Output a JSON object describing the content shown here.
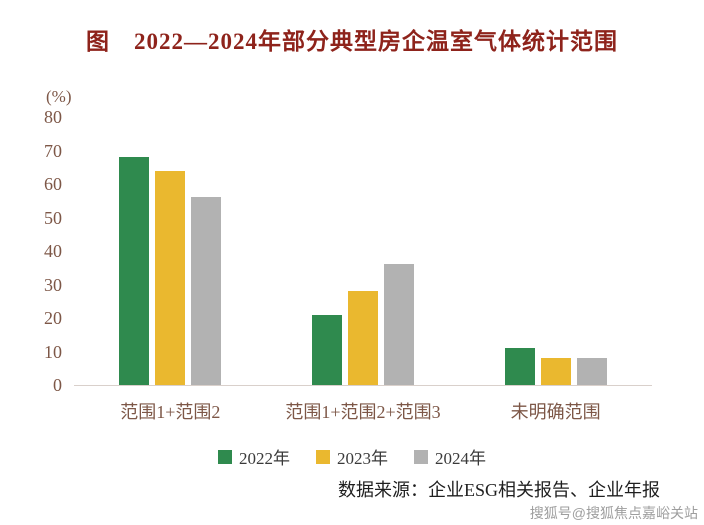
{
  "title": "图　2022—2024年部分典型房企温室气体统计范围",
  "chart_data": {
    "type": "bar",
    "unit_label": "(%)",
    "categories": [
      "范围1+范围2",
      "范围1+范围2+范围3",
      "未明确范围"
    ],
    "series": [
      {
        "name": "2022年",
        "color": "#2f8a4e",
        "values": [
          68,
          21,
          11
        ]
      },
      {
        "name": "2023年",
        "color": "#eab82f",
        "values": [
          64,
          28,
          8
        ]
      },
      {
        "name": "2024年",
        "color": "#b2b2b2",
        "values": [
          56,
          36,
          8
        ]
      }
    ],
    "ylim": [
      0,
      80
    ],
    "yticks": [
      0,
      10,
      20,
      30,
      40,
      50,
      60,
      70,
      80
    ],
    "grid": false,
    "legend_position": "bottom"
  },
  "source": "数据来源：企业ESG相关报告、企业年报",
  "watermark": "搜狐号@搜狐焦点嘉峪关站",
  "colors": {
    "title": "#8e231b",
    "axis_text": "#7d5747",
    "legend_text": "#3a3a3a",
    "source_text": "#1f1f1f",
    "watermark": "#9e9e9e",
    "axis_line": "#d9d0cb"
  }
}
